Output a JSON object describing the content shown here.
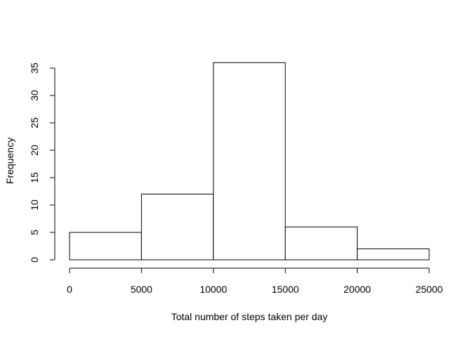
{
  "chart_data": {
    "type": "bar",
    "title": "",
    "xlabel": "Total number of steps taken per day",
    "ylabel": "Frequency",
    "bins": [
      {
        "start": 0,
        "end": 5000,
        "count": 5
      },
      {
        "start": 5000,
        "end": 10000,
        "count": 12
      },
      {
        "start": 10000,
        "end": 15000,
        "count": 36
      },
      {
        "start": 15000,
        "end": 20000,
        "count": 6
      },
      {
        "start": 20000,
        "end": 25000,
        "count": 2
      }
    ],
    "xlim": [
      0,
      25000
    ],
    "ylim": [
      0,
      35
    ],
    "x_ticks": [
      "0",
      "5000",
      "10000",
      "15000",
      "20000",
      "25000"
    ],
    "y_ticks": [
      "0",
      "5",
      "10",
      "15",
      "20",
      "25",
      "30",
      "35"
    ],
    "grid": false,
    "bar_fill": "#ffffff",
    "bar_stroke": "#000000"
  }
}
